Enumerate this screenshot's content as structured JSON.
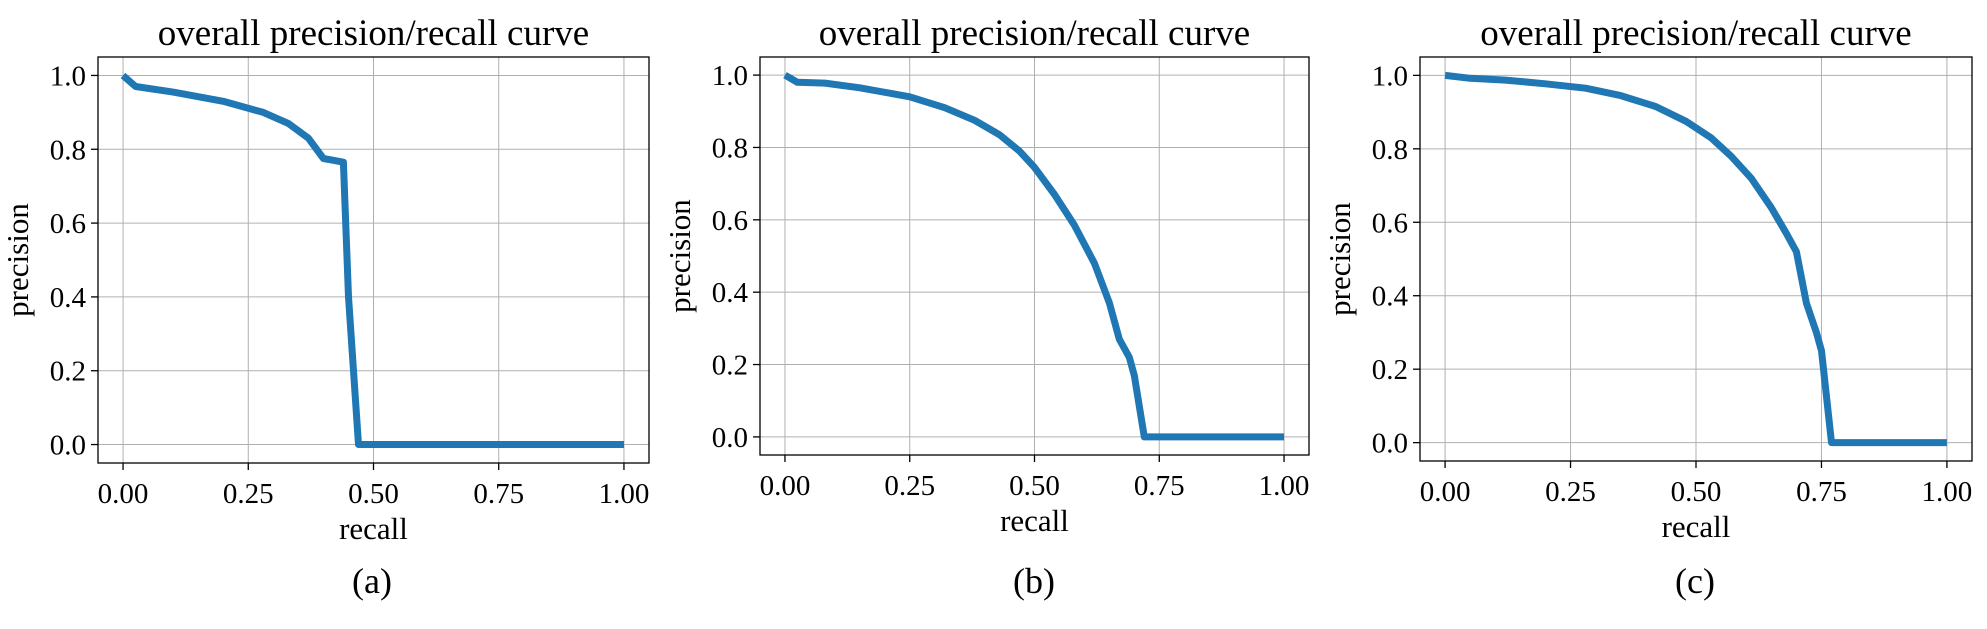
{
  "chart_data": [
    {
      "type": "line",
      "title": "overall precision/recall curve",
      "xlabel": "recall",
      "ylabel": "precision",
      "caption": "(a)",
      "xlim": [
        -0.05,
        1.05
      ],
      "ylim": [
        -0.05,
        1.05
      ],
      "xticks": [
        0.0,
        0.25,
        0.5,
        0.75,
        1.0
      ],
      "xtick_labels": [
        "0.00",
        "0.25",
        "0.50",
        "0.75",
        "1.00"
      ],
      "yticks": [
        0.0,
        0.2,
        0.4,
        0.6,
        0.8,
        1.0
      ],
      "ytick_labels": [
        "0.0",
        "0.2",
        "0.4",
        "0.6",
        "0.8",
        "1.0"
      ],
      "grid": true,
      "color": "#1f77b4",
      "x": [
        0.0,
        0.025,
        0.1,
        0.2,
        0.28,
        0.33,
        0.37,
        0.4,
        0.42,
        0.44,
        0.45,
        0.47,
        0.6,
        0.8,
        1.0
      ],
      "y": [
        1.0,
        0.97,
        0.955,
        0.93,
        0.9,
        0.87,
        0.83,
        0.775,
        0.77,
        0.765,
        0.4,
        0.0,
        0.0,
        0.0,
        0.0
      ]
    },
    {
      "type": "line",
      "title": "overall precision/recall curve",
      "xlabel": "recall",
      "ylabel": "precision",
      "caption": "(b)",
      "xlim": [
        -0.05,
        1.05
      ],
      "ylim": [
        -0.05,
        1.05
      ],
      "xticks": [
        0.0,
        0.25,
        0.5,
        0.75,
        1.0
      ],
      "xtick_labels": [
        "0.00",
        "0.25",
        "0.50",
        "0.75",
        "1.00"
      ],
      "yticks": [
        0.0,
        0.2,
        0.4,
        0.6,
        0.8,
        1.0
      ],
      "ytick_labels": [
        "0.0",
        "0.2",
        "0.4",
        "0.6",
        "0.8",
        "1.0"
      ],
      "grid": true,
      "color": "#1f77b4",
      "x": [
        0.0,
        0.025,
        0.08,
        0.15,
        0.25,
        0.32,
        0.38,
        0.43,
        0.47,
        0.5,
        0.54,
        0.58,
        0.62,
        0.65,
        0.67,
        0.69,
        0.7,
        0.72,
        0.75,
        1.0
      ],
      "y": [
        1.0,
        0.98,
        0.978,
        0.965,
        0.94,
        0.91,
        0.875,
        0.835,
        0.79,
        0.745,
        0.67,
        0.585,
        0.48,
        0.37,
        0.27,
        0.22,
        0.17,
        0.0,
        0.0,
        0.0
      ]
    },
    {
      "type": "line",
      "title": "overall precision/recall curve",
      "xlabel": "recall",
      "ylabel": "precision",
      "caption": "(c)",
      "xlim": [
        -0.05,
        1.05
      ],
      "ylim": [
        -0.05,
        1.05
      ],
      "xticks": [
        0.0,
        0.25,
        0.5,
        0.75,
        1.0
      ],
      "xtick_labels": [
        "0.00",
        "0.25",
        "0.50",
        "0.75",
        "1.00"
      ],
      "yticks": [
        0.0,
        0.2,
        0.4,
        0.6,
        0.8,
        1.0
      ],
      "ytick_labels": [
        "0.0",
        "0.2",
        "0.4",
        "0.6",
        "0.8",
        "1.0"
      ],
      "grid": true,
      "color": "#1f77b4",
      "x": [
        0.0,
        0.05,
        0.12,
        0.2,
        0.28,
        0.35,
        0.42,
        0.48,
        0.53,
        0.57,
        0.61,
        0.65,
        0.68,
        0.7,
        0.72,
        0.74,
        0.75,
        0.77,
        0.8,
        1.0
      ],
      "y": [
        1.0,
        0.992,
        0.987,
        0.977,
        0.965,
        0.945,
        0.915,
        0.875,
        0.83,
        0.78,
        0.72,
        0.64,
        0.57,
        0.52,
        0.38,
        0.3,
        0.25,
        0.0,
        0.0,
        0.0
      ]
    }
  ]
}
